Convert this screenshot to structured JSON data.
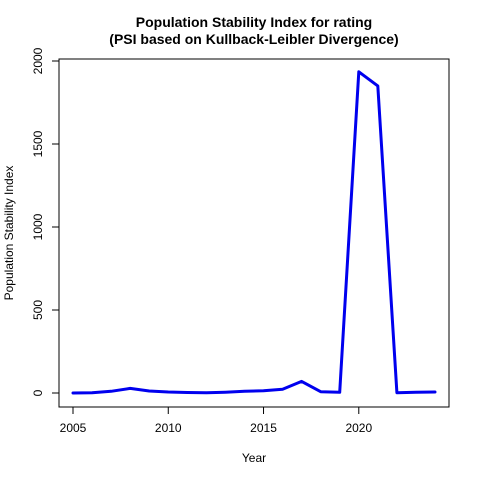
{
  "chart_data": {
    "type": "line",
    "title": "Population Stability Index for rating",
    "subtitle": "(PSI based on Kullback-Leibler Divergence)",
    "xlabel": "Year",
    "ylabel": "Population Stability Index",
    "xlim": [
      2005,
      2024
    ],
    "ylim": [
      0,
      2000
    ],
    "x_ticks": [
      2005,
      2010,
      2015,
      2020
    ],
    "y_ticks": [
      0,
      500,
      1000,
      1500,
      2000
    ],
    "grid": false,
    "legend": "none",
    "series": [
      {
        "color": "#0000ee",
        "x": [
          2005,
          2006,
          2007,
          2008,
          2009,
          2010,
          2011,
          2012,
          2013,
          2014,
          2015,
          2016,
          2017,
          2018,
          2019,
          2020,
          2021,
          2022,
          2023,
          2024
        ],
        "y": [
          0,
          1,
          10,
          28,
          12,
          6,
          3,
          2,
          5,
          10,
          13,
          22,
          70,
          8,
          4,
          1935,
          1850,
          2,
          5,
          6
        ]
      }
    ]
  }
}
